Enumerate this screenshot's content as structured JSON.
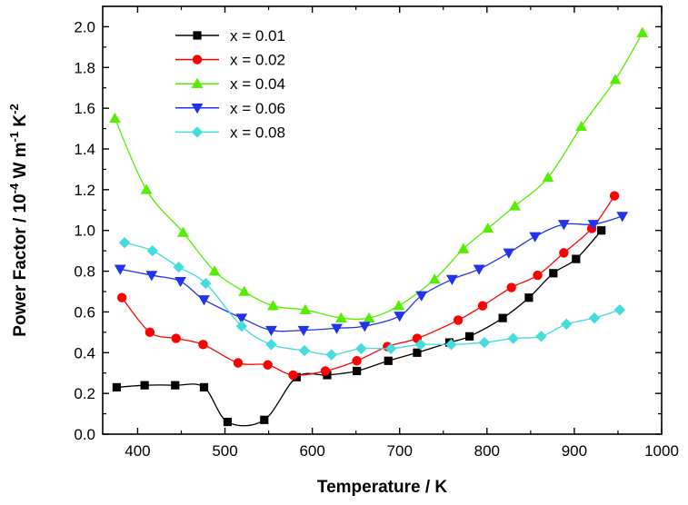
{
  "chart_data": {
    "type": "line",
    "xlabel": "Temperature / K",
    "ylabel_parts": {
      "prefix": "Power Factor / 10",
      "exp1": "-4",
      "mid1": " W m",
      "exp2": "-1",
      "mid2": " K",
      "exp3": "-2"
    },
    "xlim": [
      360,
      1000
    ],
    "ylim": [
      0.0,
      2.1
    ],
    "xticks": [
      400,
      500,
      600,
      700,
      800,
      900,
      1000
    ],
    "yticks": [
      0.0,
      0.2,
      0.4,
      0.6,
      0.8,
      1.0,
      1.2,
      1.4,
      1.6,
      1.8,
      2.0
    ],
    "xtick_labels": [
      "400",
      "500",
      "600",
      "700",
      "800",
      "900",
      "1000"
    ],
    "ytick_labels": [
      "0.0",
      "0.2",
      "0.4",
      "0.6",
      "0.8",
      "1.0",
      "1.2",
      "1.4",
      "1.6",
      "1.8",
      "2.0"
    ],
    "legend_position": "top-left",
    "series": [
      {
        "name": "x = 0.01",
        "color": "#000000",
        "marker": "square",
        "points": [
          [
            376,
            0.23
          ],
          [
            408,
            0.24
          ],
          [
            443,
            0.24
          ],
          [
            476,
            0.23
          ],
          [
            503,
            0.06
          ],
          [
            545,
            0.07
          ],
          [
            582,
            0.28
          ],
          [
            617,
            0.29
          ],
          [
            651,
            0.31
          ],
          [
            687,
            0.36
          ],
          [
            720,
            0.4
          ],
          [
            757,
            0.45
          ],
          [
            780,
            0.48
          ],
          [
            818,
            0.57
          ],
          [
            848,
            0.67
          ],
          [
            876,
            0.79
          ],
          [
            902,
            0.86
          ],
          [
            931,
            1.0
          ]
        ]
      },
      {
        "name": "x = 0.02",
        "color": "#ff0000",
        "marker": "circle",
        "points": [
          [
            382,
            0.67
          ],
          [
            414,
            0.5
          ],
          [
            444,
            0.47
          ],
          [
            475,
            0.44
          ],
          [
            515,
            0.35
          ],
          [
            549,
            0.34
          ],
          [
            578,
            0.29
          ],
          [
            615,
            0.31
          ],
          [
            651,
            0.36
          ],
          [
            686,
            0.43
          ],
          [
            720,
            0.47
          ],
          [
            767,
            0.56
          ],
          [
            795,
            0.63
          ],
          [
            828,
            0.72
          ],
          [
            858,
            0.78
          ],
          [
            888,
            0.89
          ],
          [
            920,
            1.01
          ],
          [
            946,
            1.17
          ]
        ]
      },
      {
        "name": "x = 0.04",
        "color": "#55ee00",
        "marker": "triangle-up",
        "points": [
          [
            374,
            1.55
          ],
          [
            410,
            1.2
          ],
          [
            452,
            0.99
          ],
          [
            488,
            0.8
          ],
          [
            522,
            0.7
          ],
          [
            555,
            0.63
          ],
          [
            592,
            0.61
          ],
          [
            633,
            0.57
          ],
          [
            665,
            0.57
          ],
          [
            699,
            0.63
          ],
          [
            740,
            0.76
          ],
          [
            773,
            0.91
          ],
          [
            801,
            1.01
          ],
          [
            832,
            1.12
          ],
          [
            870,
            1.26
          ],
          [
            908,
            1.51
          ],
          [
            947,
            1.74
          ],
          [
            978,
            1.97
          ]
        ]
      },
      {
        "name": "x = 0.06",
        "color": "#2233ee",
        "marker": "triangle-down",
        "points": [
          [
            380,
            0.81
          ],
          [
            416,
            0.78
          ],
          [
            449,
            0.75
          ],
          [
            476,
            0.66
          ],
          [
            519,
            0.57
          ],
          [
            553,
            0.51
          ],
          [
            590,
            0.51
          ],
          [
            628,
            0.52
          ],
          [
            660,
            0.53
          ],
          [
            700,
            0.58
          ],
          [
            725,
            0.68
          ],
          [
            760,
            0.76
          ],
          [
            791,
            0.81
          ],
          [
            825,
            0.89
          ],
          [
            855,
            0.97
          ],
          [
            888,
            1.03
          ],
          [
            922,
            1.03
          ],
          [
            955,
            1.07
          ]
        ]
      },
      {
        "name": "x = 0.08",
        "color": "#44dddd",
        "marker": "diamond",
        "points": [
          [
            385,
            0.94
          ],
          [
            417,
            0.9
          ],
          [
            447,
            0.82
          ],
          [
            478,
            0.74
          ],
          [
            519,
            0.53
          ],
          [
            553,
            0.44
          ],
          [
            591,
            0.41
          ],
          [
            622,
            0.39
          ],
          [
            656,
            0.42
          ],
          [
            690,
            0.42
          ],
          [
            724,
            0.44
          ],
          [
            759,
            0.44
          ],
          [
            797,
            0.45
          ],
          [
            830,
            0.47
          ],
          [
            862,
            0.48
          ],
          [
            891,
            0.54
          ],
          [
            923,
            0.57
          ],
          [
            952,
            0.61
          ]
        ]
      }
    ]
  }
}
